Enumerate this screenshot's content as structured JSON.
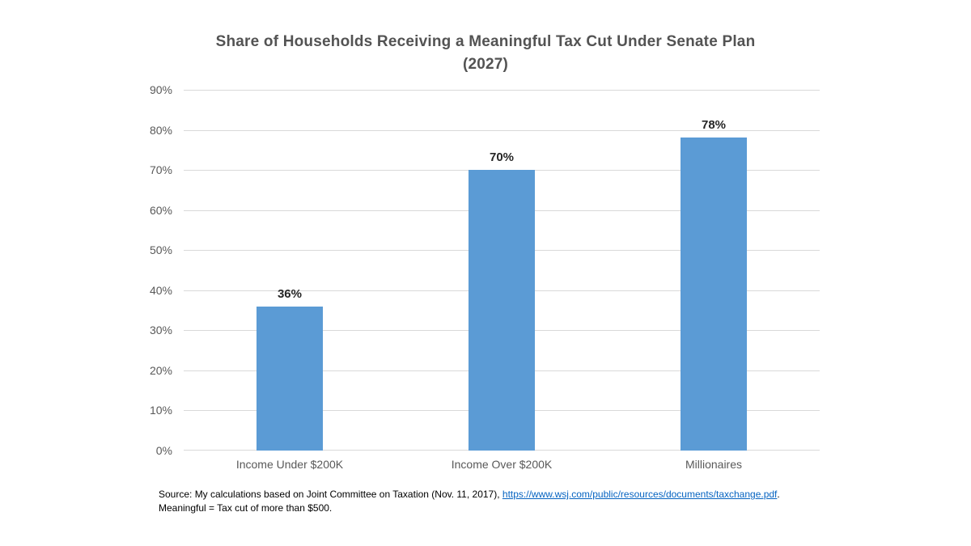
{
  "chart_data": {
    "type": "bar",
    "title": "Share of Households Receiving a Meaningful Tax Cut Under Senate Plan (2027)",
    "title_lines": [
      "Share of Households Receiving a Meaningful Tax Cut Under Senate Plan",
      "(2027)"
    ],
    "categories": [
      "Income Under $200K",
      "Income Over $200K",
      "Millionaires"
    ],
    "values": [
      36,
      70,
      78
    ],
    "data_labels": [
      "36%",
      "70%",
      "78%"
    ],
    "yticks": [
      "0%",
      "10%",
      "20%",
      "30%",
      "40%",
      "50%",
      "60%",
      "70%",
      "80%",
      "90%"
    ],
    "ytick_values": [
      0,
      10,
      20,
      30,
      40,
      50,
      60,
      70,
      80,
      90
    ],
    "ylim": [
      0,
      90
    ],
    "xlabel": "",
    "ylabel": "",
    "grid": true,
    "legend": "none",
    "bar_color": "#5B9BD5",
    "gridline_color": "#D9D9D9",
    "axis_text_color": "#595959",
    "title_color": "#535353",
    "data_label_color": "#262626"
  },
  "footer": {
    "source_prefix": "Source: My calculations based on Joint Committee on Taxation (Nov. 11, 2017), ",
    "link_text": "https://www.wsj.com/public/resources/documents/taxchange.pdf",
    "source_suffix": ".",
    "note": "Meaningful = Tax cut of more than $500.",
    "link_color": "#0563C1"
  }
}
